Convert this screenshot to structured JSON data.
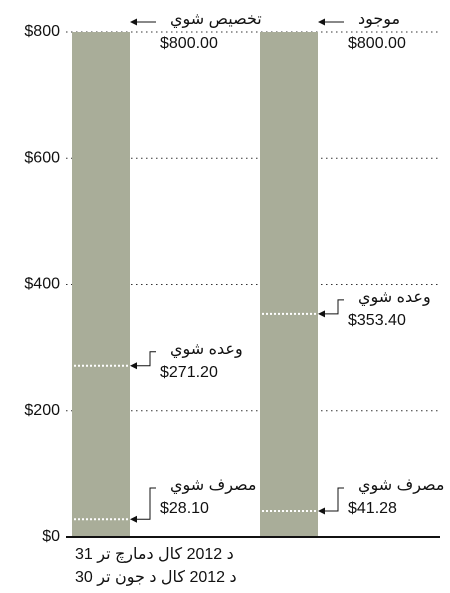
{
  "chart_data": {
    "type": "bar",
    "color": "#a9ad99",
    "grid": true,
    "ylim": [
      0,
      800
    ],
    "yticks": [
      {
        "value": 0,
        "label": "$0"
      },
      {
        "value": 200,
        "label": "$200"
      },
      {
        "value": 400,
        "label": "$400"
      },
      {
        "value": 600,
        "label": "$600"
      },
      {
        "value": 800,
        "label": "$800"
      }
    ],
    "bars": [
      {
        "label": "د 2012 کال دمارچ تر 31",
        "top": {
          "name": "تخصیص شوي",
          "value": 800,
          "value_label": "$800.00"
        },
        "markers": [
          {
            "name": "وعده شوي",
            "value": 271.2,
            "value_label": "$271.20"
          },
          {
            "name": "مصرف شوي",
            "value": 28.1,
            "value_label": "$28.10"
          }
        ]
      },
      {
        "label": "د 2012 کال د جون تر 30",
        "top": {
          "name": "موجود",
          "value": 800,
          "value_label": "$800.00"
        },
        "markers": [
          {
            "name": "وعده شوي",
            "value": 353.4,
            "value_label": "$353.40"
          },
          {
            "name": "مصرف شوي",
            "value": 41.28,
            "value_label": "$41.28"
          }
        ]
      }
    ]
  }
}
